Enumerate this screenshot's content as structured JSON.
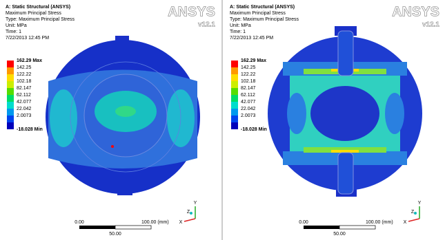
{
  "panels": [
    {
      "header": [
        "A: Static Structural (ANSYS)",
        "Maximum Principal Stress",
        "Type: Maximum Principal Stress",
        "Unit: MPa",
        "Time: 1",
        "7/22/2013 12:45 PM"
      ],
      "legend": [
        {
          "label": "162.29 Max",
          "color": "#ff0000"
        },
        {
          "label": "142.25",
          "color": "#ff9900"
        },
        {
          "label": "122.22",
          "color": "#ffdd00"
        },
        {
          "label": "102.18",
          "color": "#ccee00"
        },
        {
          "label": "82.147",
          "color": "#55dd00"
        },
        {
          "label": "62.112",
          "color": "#00dd66"
        },
        {
          "label": "42.077",
          "color": "#00ddcc"
        },
        {
          "label": "22.042",
          "color": "#0099ee"
        },
        {
          "label": "2.0073",
          "color": "#0044ee"
        },
        {
          "label": "-18.028 Min",
          "color": "#0000bb"
        }
      ],
      "logo": "ANSYS",
      "version": "v12.1",
      "scale": {
        "start": "0.00",
        "end": "100.00 (mm)",
        "mid": "50.00"
      },
      "axes": {
        "x": "X",
        "y": "Y",
        "z": "Z"
      }
    },
    {
      "header": [
        "A: Static Structural (ANSYS)",
        "Maximum Principal Stress",
        "Type: Maximum Principal Stress",
        "Unit: MPa",
        "Time: 1",
        "7/22/2013 12:45 PM"
      ],
      "legend": [
        {
          "label": "162.29 Max",
          "color": "#ff0000"
        },
        {
          "label": "142.25",
          "color": "#ff9900"
        },
        {
          "label": "122.22",
          "color": "#ffdd00"
        },
        {
          "label": "102.18",
          "color": "#ccee00"
        },
        {
          "label": "82.147",
          "color": "#55dd00"
        },
        {
          "label": "62.112",
          "color": "#00dd66"
        },
        {
          "label": "42.077",
          "color": "#00ddcc"
        },
        {
          "label": "22.042",
          "color": "#0099ee"
        },
        {
          "label": "2.0073",
          "color": "#0044ee"
        },
        {
          "label": "-18.028 Min",
          "color": "#0000bb"
        }
      ],
      "logo": "ANSYS",
      "version": "v12.1",
      "scale": {
        "start": "0.00",
        "end": "100.00 (mm)",
        "mid": "50.00"
      },
      "axes": {
        "x": "X",
        "y": "Y",
        "z": "Z"
      }
    }
  ]
}
